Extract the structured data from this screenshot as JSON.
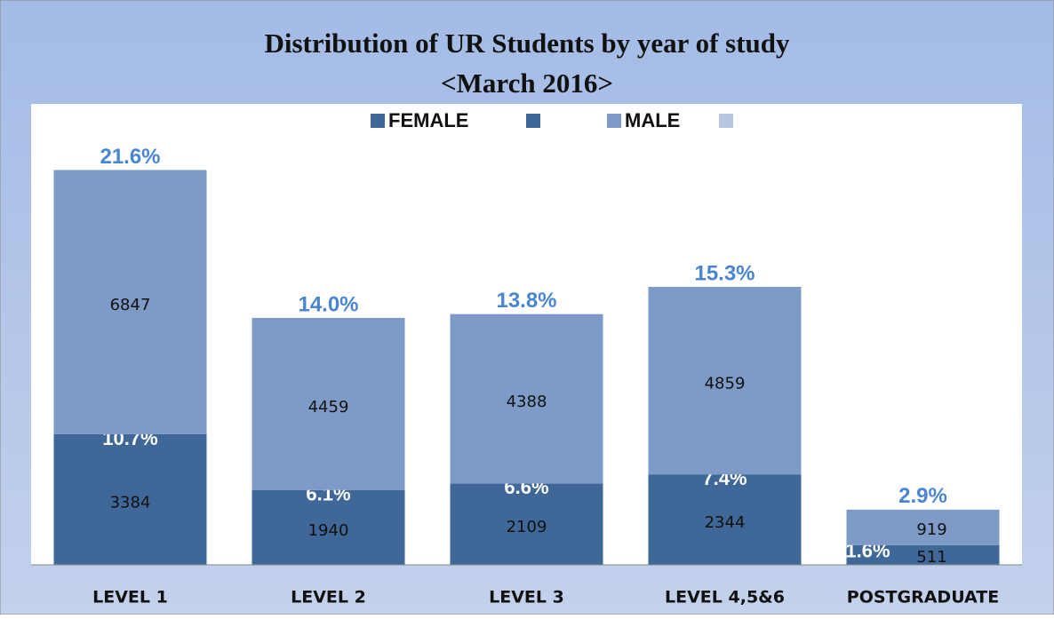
{
  "chart_data": {
    "type": "stacked_bar",
    "title": "Distribution of UR Students by year of study",
    "subtitle": "<March 2016>",
    "categories": [
      "LEVEL 1",
      "LEVEL 2",
      "LEVEL 3",
      "LEVEL 4,5&6",
      "POSTGRADUATE"
    ],
    "series": [
      {
        "name": "FEMALE",
        "color": "#3f6797",
        "values": [
          3384,
          1940,
          2109,
          2344,
          511
        ],
        "share_labels": [
          "10.7%",
          "6.1%",
          "6.6%",
          "7.4%",
          "1.6%"
        ]
      },
      {
        "name": "MALE",
        "color": "#7e9bc8",
        "values": [
          6847,
          4459,
          4388,
          4859,
          919
        ],
        "share_labels": [
          "21.6%",
          "14.0%",
          "13.8%",
          "15.3%",
          "2.9%"
        ]
      }
    ],
    "ylim": [
      0,
      11000
    ],
    "legend": "top"
  }
}
